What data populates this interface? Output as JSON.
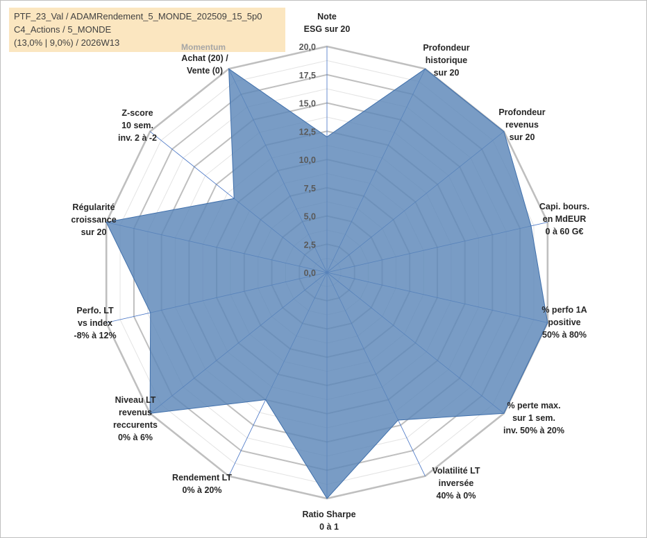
{
  "info": {
    "line1": "PTF_23_Val / ADAMRendement_5_MONDE_202509_15_5p0",
    "line2": "C4_Actions / 5_MONDE",
    "line3": "(13,0% | 9,0%) / 2026W13"
  },
  "chart_data": {
    "type": "radar",
    "r_range": [
      0,
      20
    ],
    "tick_values": [
      0,
      2.5,
      5,
      7.5,
      10,
      12.5,
      15,
      17.5,
      20
    ],
    "tick_labels": [
      "0,0",
      "2,5",
      "5,0",
      "7,5",
      "10,0",
      "12,5",
      "15,0",
      "17,5",
      "20,0"
    ],
    "group_label": "Momentum",
    "axes": [
      {
        "label": [
          "Note",
          "ESG sur 20"
        ],
        "value": 12
      },
      {
        "label": [
          "Profondeur",
          "historique",
          "sur 20"
        ],
        "value": 20
      },
      {
        "label": [
          "Profondeur",
          "revenus",
          "sur 20"
        ],
        "value": 20
      },
      {
        "label": [
          "Capi. bours.",
          "en MdEUR",
          "0 à 60 G€"
        ],
        "value": 18.5
      },
      {
        "label": [
          "% perfo 1A",
          "positive",
          "50% à 80%"
        ],
        "value": 20
      },
      {
        "label": [
          "% perte max.",
          "sur 1 sem.",
          "inv. 50% à 20%"
        ],
        "value": 20
      },
      {
        "label": [
          "Volatilité LT",
          "inversée",
          "40% à 0%"
        ],
        "value": 14.5
      },
      {
        "label": [
          "Ratio Sharpe",
          "0 à 1"
        ],
        "value": 20
      },
      {
        "label": [
          "Rendement LT",
          "0% à 20%"
        ],
        "value": 12.5
      },
      {
        "label": [
          "Niveau LT",
          "revenus",
          "reccurents",
          "0% à 6%"
        ],
        "value": 20
      },
      {
        "label": [
          "Perfo. LT",
          "vs index",
          "-8% à 12%"
        ],
        "value": 16
      },
      {
        "label": [
          "Régularité",
          "croissance",
          "sur 20"
        ],
        "value": 20
      },
      {
        "label": [
          "Z-score",
          "10 sem.",
          "inv. 2 à -2"
        ],
        "value": 10.5
      },
      {
        "label": [
          "Achat (20) /",
          "Vente (0)"
        ],
        "value": 20
      }
    ],
    "series": [
      {
        "fill": "#5b86b8",
        "fill_opacity": 0.82,
        "stroke": "#3f6fab"
      }
    ],
    "grid_color": "#bfbfbf",
    "spoke_color": "#4472c4"
  }
}
